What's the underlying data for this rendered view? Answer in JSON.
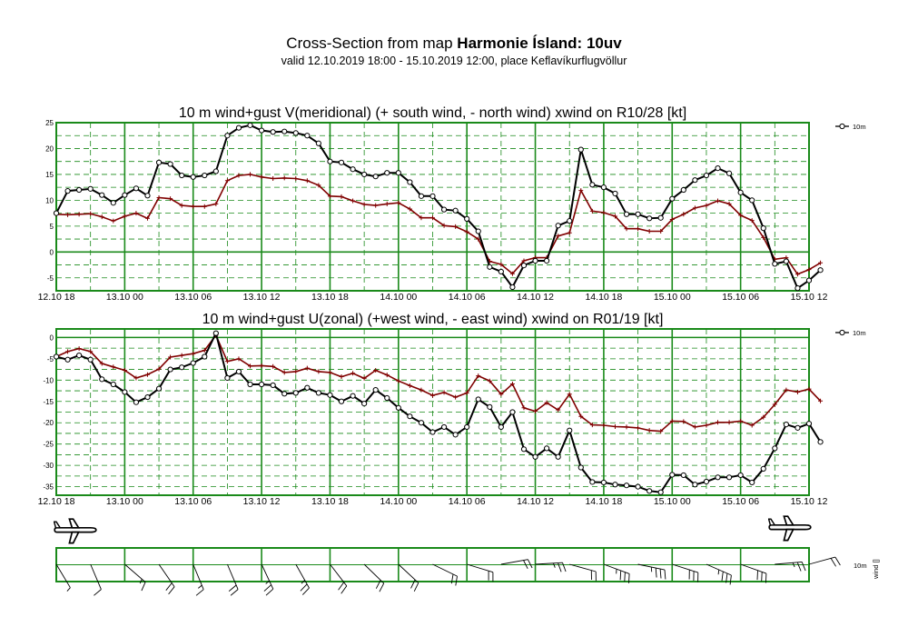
{
  "header": {
    "title_prefix": "Cross-Section from map ",
    "title_bold": "Harmonie Ísland: 10uv",
    "subtitle": "valid 12.10.2019 18:00 - 15.10.2019 12:00, place Keflavíkurflugvöllur"
  },
  "legend": {
    "label": "10m"
  },
  "wind_panel": {
    "level_label": "10m",
    "axis_label": "wind []"
  },
  "colors": {
    "grid": "#1a8a1a",
    "wind": "#000000",
    "gust_component": "#800000"
  },
  "chart_data": [
    {
      "type": "line",
      "title": "10 m wind+gust V(meridional) (+ south wind, - north wind) xwind on R10/28 [kt]",
      "x_tick_labels": [
        "12.10 18",
        "13.10 00",
        "13.10 06",
        "13.10 12",
        "13.10 18",
        "14.10 00",
        "14.10 06",
        "14.10 12",
        "14.10 18",
        "15.10 00",
        "15.10 06",
        "15.10 12"
      ],
      "x_unit": "hours since 12.10 18",
      "xlim": [
        0,
        66
      ],
      "ylim": [
        -7.5,
        25
      ],
      "y_ticks": [
        -5,
        0,
        5,
        10,
        15,
        20,
        25
      ],
      "grid": true,
      "legend_position": "right",
      "series": [
        {
          "name": "10m",
          "color": "#000000",
          "marker": "circle",
          "values": [
            7.5,
            11.8,
            12,
            12.2,
            11,
            9.5,
            11,
            12.3,
            10.9,
            17.3,
            17,
            14.8,
            14.5,
            14.8,
            15.6,
            22.5,
            24,
            24.5,
            23.5,
            23.2,
            23.3,
            23,
            22.5,
            21,
            17.5,
            17.3,
            16,
            15,
            14.6,
            15.3,
            15.3,
            13.5,
            10.8,
            10.8,
            8.2,
            8,
            6.4,
            4,
            -2.9,
            -3.8,
            -6.8,
            -2.6,
            -1.7,
            -1.7,
            5.1,
            6,
            19.8,
            13,
            12.5,
            11.3,
            7.3,
            7.3,
            6.5,
            6.6,
            10.3,
            12,
            13.9,
            14.8,
            16.2,
            15.2,
            11.5,
            10,
            4.6,
            -2.3,
            -1.8,
            -7,
            -5.5,
            -3.5
          ]
        },
        {
          "color": "#800000",
          "marker": "plus",
          "values": [
            7.3,
            7.2,
            7.3,
            7.4,
            6.8,
            6,
            6.9,
            7.5,
            6.5,
            10.5,
            10.3,
            9,
            8.8,
            8.8,
            9.3,
            13.8,
            14.8,
            15,
            14.5,
            14.2,
            14.3,
            14.2,
            13.8,
            12.9,
            10.8,
            10.7,
            9.9,
            9.2,
            9,
            9.3,
            9.5,
            8.3,
            6.6,
            6.6,
            5.1,
            4.9,
            3.9,
            2.5,
            -1.8,
            -2.4,
            -4.2,
            -1.7,
            -1.1,
            -1.1,
            3.1,
            3.7,
            11.9,
            7.9,
            7.6,
            6.9,
            4.5,
            4.5,
            4,
            4,
            6.3,
            7.3,
            8.5,
            9,
            9.9,
            9.3,
            7.1,
            6.1,
            2.8,
            -1.4,
            -1.1,
            -4.3,
            -3.4,
            -2.1
          ]
        }
      ]
    },
    {
      "type": "line",
      "title": "10 m wind+gust U(zonal) (+west wind, - east wind) xwind on R01/19 [kt]",
      "x_tick_labels": [
        "12.10 18",
        "13.10 00",
        "13.10 06",
        "13.10 12",
        "13.10 18",
        "14.10 00",
        "14.10 06",
        "14.10 12",
        "14.10 18",
        "15.10 00",
        "15.10 06",
        "15.10 12"
      ],
      "x_unit": "hours since 12.10 18",
      "xlim": [
        0,
        66
      ],
      "ylim": [
        -37,
        2
      ],
      "y_ticks": [
        -35,
        -30,
        -25,
        -20,
        -15,
        -10,
        -5,
        0
      ],
      "grid": true,
      "legend_position": "right",
      "series": [
        {
          "name": "10m",
          "color": "#000000",
          "marker": "circle",
          "values": [
            -4.5,
            -5.2,
            -4.2,
            -5.2,
            -9.8,
            -11,
            -12.8,
            -15.2,
            -14,
            -12,
            -7.5,
            -7,
            -6,
            -4.5,
            1,
            -9.5,
            -8,
            -11,
            -11,
            -11.2,
            -13.2,
            -13,
            -11.8,
            -13,
            -13.5,
            -15,
            -13.7,
            -15.5,
            -12.3,
            -14.2,
            -16.5,
            -18.5,
            -20,
            -22.2,
            -21,
            -22.8,
            -21,
            -14.5,
            -16.3,
            -21,
            -17.5,
            -26.2,
            -28,
            -26,
            -28,
            -21.8,
            -30.5,
            -33.9,
            -34,
            -34.5,
            -34.7,
            -35,
            -36,
            -36.3,
            -32.2,
            -32.3,
            -34.5,
            -33.8,
            -32.8,
            -32.8,
            -32.3,
            -34,
            -30.8,
            -26,
            -20.4,
            -21.2,
            -20.2,
            -24.5
          ]
        },
        {
          "color": "#800000",
          "marker": "plus",
          "values": [
            -4.5,
            -3.3,
            -2.6,
            -3.3,
            -6.1,
            -6.9,
            -7.7,
            -9.5,
            -8.7,
            -7.4,
            -4.6,
            -4.2,
            -3.8,
            -3,
            0.5,
            -5.6,
            -5,
            -6.7,
            -6.6,
            -6.8,
            -8.2,
            -8,
            -7.2,
            -8,
            -8.2,
            -9.2,
            -8.4,
            -9.6,
            -7.7,
            -8.8,
            -10.2,
            -11.3,
            -12.3,
            -13.6,
            -12.9,
            -14,
            -13,
            -9,
            -10.2,
            -13.3,
            -10.9,
            -16.5,
            -17.3,
            -15.3,
            -17,
            -13.3,
            -18.5,
            -20.5,
            -20.6,
            -20.9,
            -21,
            -21.2,
            -21.8,
            -22,
            -19.6,
            -19.7,
            -21,
            -20.6,
            -19.9,
            -19.9,
            -19.6,
            -20.6,
            -18.7,
            -15.7,
            -12.3,
            -12.8,
            -12.1,
            -14.9
          ]
        }
      ]
    }
  ]
}
